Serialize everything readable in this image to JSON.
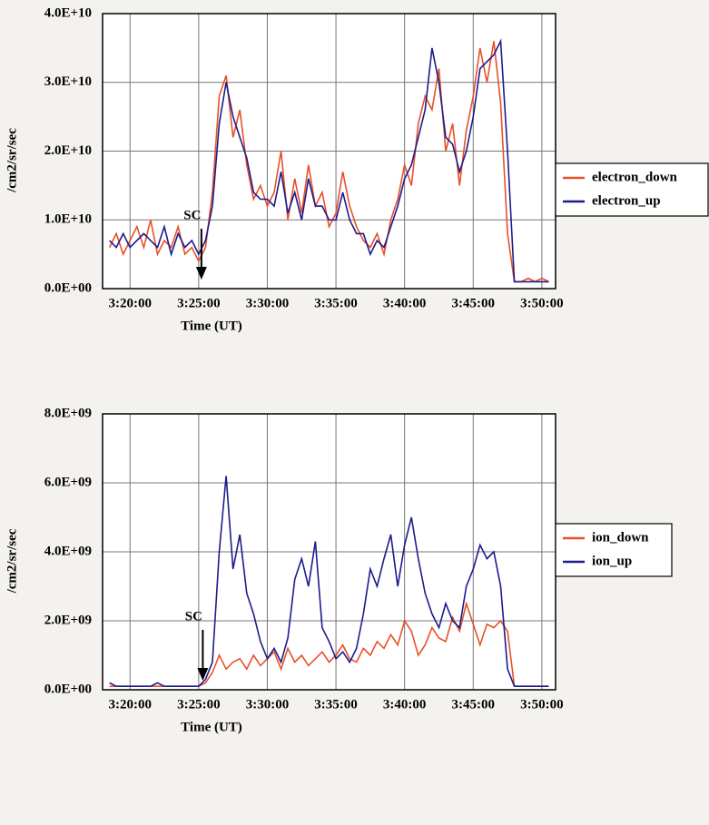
{
  "chart_data": [
    {
      "type": "line",
      "x_label": "Time (UT)",
      "y_label": "/cm2/sr/sec",
      "xlim": [
        18,
        51
      ],
      "ylim": [
        0,
        40000000000.0
      ],
      "xticks": [
        {
          "value": 20,
          "label": "3:20:00"
        },
        {
          "value": 25,
          "label": "3:25:00"
        },
        {
          "value": 30,
          "label": "3:30:00"
        },
        {
          "value": 35,
          "label": "3:35:00"
        },
        {
          "value": 40,
          "label": "3:40:00"
        },
        {
          "value": 45,
          "label": "3:45:00"
        },
        {
          "value": 50,
          "label": "3:50:00"
        }
      ],
      "yticks": [
        {
          "value": 0,
          "label": "0.0E+00"
        },
        {
          "value": 10000000000.0,
          "label": "1.0E+10"
        },
        {
          "value": 20000000000.0,
          "label": "2.0E+10"
        },
        {
          "value": 30000000000.0,
          "label": "3.0E+10"
        },
        {
          "value": 40000000000.0,
          "label": "4.0E+10"
        }
      ],
      "grid": true,
      "legend": "right",
      "annotations": [
        {
          "text": "SC",
          "x": 25.2
        }
      ],
      "x": [
        18.5,
        19,
        19.5,
        20,
        20.5,
        21,
        21.5,
        22,
        22.5,
        23,
        23.5,
        24,
        24.5,
        25,
        25.5,
        26,
        26.5,
        27,
        27.5,
        28,
        28.5,
        29,
        29.5,
        30,
        30.5,
        31,
        31.5,
        32,
        32.5,
        33,
        33.5,
        34,
        34.5,
        35,
        35.5,
        36,
        36.5,
        37,
        37.5,
        38,
        38.5,
        39,
        39.5,
        40,
        40.5,
        41,
        41.5,
        42,
        42.5,
        43,
        43.5,
        44,
        44.5,
        45,
        45.5,
        46,
        46.5,
        47,
        47.5,
        48,
        48.5,
        49,
        49.5,
        50,
        50.5
      ],
      "series": [
        {
          "name": "electron_down",
          "color": "#e8502a",
          "values": [
            6000000000.0,
            8000000000.0,
            5000000000.0,
            7000000000.0,
            9000000000.0,
            6000000000.0,
            10000000000.0,
            5000000000.0,
            7000000000.0,
            6000000000.0,
            9000000000.0,
            5000000000.0,
            6000000000.0,
            4000000000.0,
            6000000000.0,
            14000000000.0,
            28000000000.0,
            31000000000.0,
            22000000000.0,
            26000000000.0,
            18000000000.0,
            13000000000.0,
            15000000000.0,
            12000000000.0,
            14000000000.0,
            20000000000.0,
            10000000000.0,
            16000000000.0,
            11000000000.0,
            18000000000.0,
            12000000000.0,
            14000000000.0,
            9000000000.0,
            11000000000.0,
            17000000000.0,
            12000000000.0,
            9000000000.0,
            7000000000.0,
            6000000000.0,
            8000000000.0,
            5000000000.0,
            10000000000.0,
            13000000000.0,
            18000000000.0,
            15000000000.0,
            24000000000.0,
            28000000000.0,
            26000000000.0,
            32000000000.0,
            20000000000.0,
            24000000000.0,
            15000000000.0,
            23000000000.0,
            28000000000.0,
            35000000000.0,
            30000000000.0,
            36000000000.0,
            27000000000.0,
            8000000000.0,
            1000000000.0,
            1000000000.0,
            1500000000.0,
            1000000000.0,
            1500000000.0,
            1000000000.0
          ]
        },
        {
          "name": "electron_up",
          "color": "#1c1c8c",
          "values": [
            7000000000.0,
            6000000000.0,
            8000000000.0,
            6000000000.0,
            7000000000.0,
            8000000000.0,
            7000000000.0,
            6000000000.0,
            9000000000.0,
            5000000000.0,
            8000000000.0,
            6000000000.0,
            7000000000.0,
            5000000000.0,
            7000000000.0,
            12000000000.0,
            24000000000.0,
            30000000000.0,
            25000000000.0,
            22000000000.0,
            19000000000.0,
            14000000000.0,
            13000000000.0,
            13000000000.0,
            12000000000.0,
            17000000000.0,
            11000000000.0,
            14000000000.0,
            10000000000.0,
            16000000000.0,
            12000000000.0,
            12000000000.0,
            10000000000.0,
            10000000000.0,
            14000000000.0,
            10000000000.0,
            8000000000.0,
            8000000000.0,
            5000000000.0,
            7000000000.0,
            6000000000.0,
            9000000000.0,
            12000000000.0,
            16000000000.0,
            18000000000.0,
            22000000000.0,
            26000000000.0,
            35000000000.0,
            30000000000.0,
            22000000000.0,
            21000000000.0,
            17000000000.0,
            20000000000.0,
            25000000000.0,
            32000000000.0,
            33000000000.0,
            34000000000.0,
            36000000000.0,
            20000000000.0,
            1000000000.0,
            1000000000.0,
            1000000000.0,
            1000000000.0,
            1000000000.0,
            1000000000.0
          ]
        }
      ]
    },
    {
      "type": "line",
      "x_label": "Time (UT)",
      "y_label": "/cm2/sr/sec",
      "xlim": [
        18,
        51
      ],
      "ylim": [
        0,
        8000000000.0
      ],
      "xticks": [
        {
          "value": 20,
          "label": "3:20:00"
        },
        {
          "value": 25,
          "label": "3:25:00"
        },
        {
          "value": 30,
          "label": "3:30:00"
        },
        {
          "value": 35,
          "label": "3:35:00"
        },
        {
          "value": 40,
          "label": "3:40:00"
        },
        {
          "value": 45,
          "label": "3:45:00"
        },
        {
          "value": 50,
          "label": "3:50:00"
        }
      ],
      "yticks": [
        {
          "value": 0,
          "label": "0.0E+00"
        },
        {
          "value": 2000000000.0,
          "label": "2.0E+09"
        },
        {
          "value": 4000000000.0,
          "label": "4.0E+09"
        },
        {
          "value": 6000000000.0,
          "label": "6.0E+09"
        },
        {
          "value": 8000000000.0,
          "label": "8.0E+09"
        }
      ],
      "grid": true,
      "legend": "right",
      "annotations": [
        {
          "text": "SC",
          "x": 25.3
        }
      ],
      "x": [
        18.5,
        19,
        19.5,
        20,
        20.5,
        21,
        21.5,
        22,
        22.5,
        23,
        23.5,
        24,
        24.5,
        25,
        25.5,
        26,
        26.5,
        27,
        27.5,
        28,
        28.5,
        29,
        29.5,
        30,
        30.5,
        31,
        31.5,
        32,
        32.5,
        33,
        33.5,
        34,
        34.5,
        35,
        35.5,
        36,
        36.5,
        37,
        37.5,
        38,
        38.5,
        39,
        39.5,
        40,
        40.5,
        41,
        41.5,
        42,
        42.5,
        43,
        43.5,
        44,
        44.5,
        45,
        45.5,
        46,
        46.5,
        47,
        47.5,
        48,
        48.5,
        49,
        49.5,
        50,
        50.5
      ],
      "series": [
        {
          "name": "ion_down",
          "color": "#e8502a",
          "values": [
            100000000.0,
            100000000.0,
            100000000.0,
            100000000.0,
            100000000.0,
            100000000.0,
            100000000.0,
            100000000.0,
            100000000.0,
            100000000.0,
            100000000.0,
            100000000.0,
            100000000.0,
            100000000.0,
            200000000.0,
            500000000.0,
            1000000000.0,
            600000000.0,
            800000000.0,
            900000000.0,
            600000000.0,
            1000000000.0,
            700000000.0,
            900000000.0,
            1100000000.0,
            600000000.0,
            1200000000.0,
            800000000.0,
            1000000000.0,
            700000000.0,
            900000000.0,
            1100000000.0,
            800000000.0,
            1000000000.0,
            1300000000.0,
            900000000.0,
            800000000.0,
            1200000000.0,
            1000000000.0,
            1400000000.0,
            1200000000.0,
            1600000000.0,
            1300000000.0,
            2000000000.0,
            1700000000.0,
            1000000000.0,
            1300000000.0,
            1800000000.0,
            1500000000.0,
            1400000000.0,
            2100000000.0,
            1700000000.0,
            2500000000.0,
            1900000000.0,
            1300000000.0,
            1900000000.0,
            1800000000.0,
            2000000000.0,
            1700000000.0,
            100000000.0,
            100000000.0,
            100000000.0,
            100000000.0,
            100000000.0,
            100000000.0
          ]
        },
        {
          "name": "ion_up",
          "color": "#1c1c8c",
          "values": [
            200000000.0,
            100000000.0,
            100000000.0,
            100000000.0,
            100000000.0,
            100000000.0,
            100000000.0,
            200000000.0,
            100000000.0,
            100000000.0,
            100000000.0,
            100000000.0,
            100000000.0,
            100000000.0,
            300000000.0,
            800000000.0,
            4000000000.0,
            6200000000.0,
            3500000000.0,
            4500000000.0,
            2800000000.0,
            2200000000.0,
            1400000000.0,
            900000000.0,
            1200000000.0,
            800000000.0,
            1500000000.0,
            3200000000.0,
            3800000000.0,
            3000000000.0,
            4300000000.0,
            1800000000.0,
            1400000000.0,
            900000000.0,
            1100000000.0,
            800000000.0,
            1200000000.0,
            2200000000.0,
            3500000000.0,
            3000000000.0,
            3800000000.0,
            4500000000.0,
            3000000000.0,
            4200000000.0,
            5000000000.0,
            3800000000.0,
            2800000000.0,
            2200000000.0,
            1800000000.0,
            2500000000.0,
            2000000000.0,
            1800000000.0,
            3000000000.0,
            3500000000.0,
            4200000000.0,
            3800000000.0,
            4000000000.0,
            3000000000.0,
            600000000.0,
            100000000.0,
            100000000.0,
            100000000.0,
            100000000.0,
            100000000.0,
            100000000.0
          ]
        }
      ]
    }
  ]
}
